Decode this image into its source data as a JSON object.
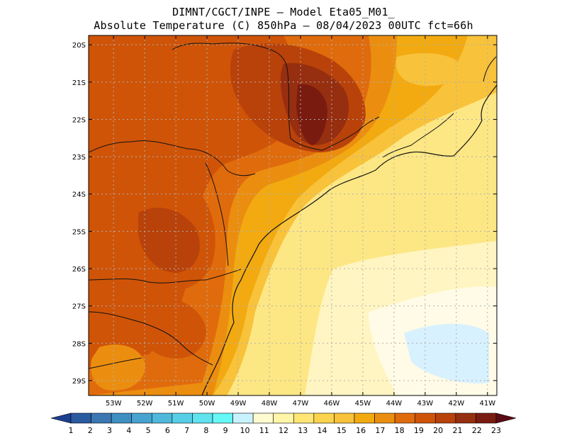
{
  "title": {
    "line1": "DIMNT/CGCT/INPE  –  Model Eta05_M01_",
    "line2": "Absolute Temperature (C) 850hPa  –  08/04/2023 00UTC fct=66h"
  },
  "map": {
    "lon_range": [
      -53.8,
      -40.7
    ],
    "lat_range": [
      -29.4,
      -19.75
    ],
    "lat_ticks": [
      {
        "value": -20,
        "label": "20S"
      },
      {
        "value": -21,
        "label": "21S"
      },
      {
        "value": -22,
        "label": "22S"
      },
      {
        "value": -23,
        "label": "23S"
      },
      {
        "value": -24,
        "label": "24S"
      },
      {
        "value": -25,
        "label": "25S"
      },
      {
        "value": -26,
        "label": "26S"
      },
      {
        "value": -27,
        "label": "27S"
      },
      {
        "value": -28,
        "label": "28S"
      },
      {
        "value": -29,
        "label": "29S"
      }
    ],
    "lon_ticks": [
      {
        "value": -53,
        "label": "53W"
      },
      {
        "value": -52,
        "label": "52W"
      },
      {
        "value": -51,
        "label": "51W"
      },
      {
        "value": -50,
        "label": "50W"
      },
      {
        "value": -49,
        "label": "49W"
      },
      {
        "value": -48,
        "label": "48W"
      },
      {
        "value": -47,
        "label": "47W"
      },
      {
        "value": -46,
        "label": "46W"
      },
      {
        "value": -45,
        "label": "45W"
      },
      {
        "value": -44,
        "label": "44W"
      },
      {
        "value": -43,
        "label": "43W"
      },
      {
        "value": -42,
        "label": "42W"
      },
      {
        "value": -41,
        "label": "41W"
      }
    ]
  },
  "colorbar": {
    "labels": [
      "1",
      "2",
      "3",
      "4",
      "5",
      "6",
      "7",
      "8",
      "9",
      "10",
      "11",
      "12",
      "13",
      "14",
      "15",
      "16",
      "17",
      "18",
      "19",
      "20",
      "21",
      "22",
      "23"
    ],
    "colors": [
      "#1d3f8f",
      "#2a5aa0",
      "#3a77b3",
      "#3f8fc2",
      "#47a3cf",
      "#4fb8db",
      "#56cfe6",
      "#5fe3ef",
      "#66f7f7",
      "#c8f2ff",
      "#fffbd0",
      "#fff5a6",
      "#ffe574",
      "#fcd34c",
      "#f8c23a",
      "#f2aa10",
      "#eb8e10",
      "#e06b0c",
      "#cf5408",
      "#b8420a",
      "#962e10",
      "#7a1b10",
      "#5c0a14"
    ]
  }
}
